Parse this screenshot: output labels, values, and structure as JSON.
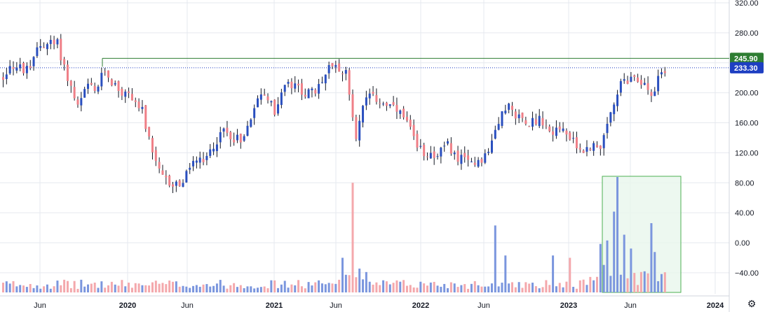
{
  "chart_data": {
    "type": "candlestick",
    "colors": {
      "up": "#2a4fbf",
      "down": "#ef7f87",
      "volume_up": "#7b96de",
      "volume_down": "#f4a8ac",
      "resistance": "#2e7d32",
      "current_line": "#1e3fc2",
      "highlight_fill": "#e8f6ec",
      "highlight_border": "#4caf50",
      "grid": "#e6e9ef"
    },
    "y_axis": {
      "ticks": [
        "320.00",
        "280.00",
        "245.90",
        "200.00",
        "160.00",
        "120.00",
        "80.00",
        "40.00",
        "0.00",
        "−40.00"
      ],
      "range": [
        -70,
        330
      ]
    },
    "x_axis": {
      "ticks": [
        {
          "label": "Jun",
          "bold": false
        },
        {
          "label": "2020",
          "bold": true
        },
        {
          "label": "Jun",
          "bold": false
        },
        {
          "label": "2021",
          "bold": true
        },
        {
          "label": "Jun",
          "bold": false
        },
        {
          "label": "2022",
          "bold": true
        },
        {
          "label": "Jun",
          "bold": false
        },
        {
          "label": "2023",
          "bold": true
        },
        {
          "label": "Jun",
          "bold": false
        },
        {
          "label": "2024",
          "bold": true
        }
      ]
    },
    "price_labels": {
      "resistance": {
        "value": 245.9,
        "text": "245.90"
      },
      "current": {
        "value": 233.3,
        "text": "233.30"
      }
    },
    "price_path": [
      [
        0,
        220
      ],
      [
        2,
        238
      ],
      [
        5,
        232
      ],
      [
        8,
        228
      ],
      [
        10,
        262
      ],
      [
        13,
        266
      ],
      [
        16,
        265
      ],
      [
        19,
        220
      ],
      [
        22,
        180
      ],
      [
        25,
        210
      ],
      [
        27,
        200
      ],
      [
        30,
        230
      ],
      [
        32,
        215
      ],
      [
        35,
        200
      ],
      [
        38,
        195
      ],
      [
        41,
        175
      ],
      [
        44,
        115
      ],
      [
        47,
        85
      ],
      [
        50,
        78
      ],
      [
        53,
        80
      ],
      [
        56,
        110
      ],
      [
        59,
        105
      ],
      [
        62,
        130
      ],
      [
        65,
        150
      ],
      [
        68,
        140
      ],
      [
        71,
        140
      ],
      [
        74,
        185
      ],
      [
        77,
        200
      ],
      [
        80,
        175
      ],
      [
        83,
        210
      ],
      [
        86,
        208
      ],
      [
        89,
        200
      ],
      [
        92,
        200
      ],
      [
        95,
        225
      ],
      [
        97,
        240
      ],
      [
        99,
        235
      ],
      [
        101,
        225
      ],
      [
        104,
        145
      ],
      [
        107,
        195
      ],
      [
        110,
        190
      ],
      [
        113,
        185
      ],
      [
        116,
        175
      ],
      [
        119,
        160
      ],
      [
        122,
        125
      ],
      [
        125,
        120
      ],
      [
        128,
        118
      ],
      [
        131,
        130
      ],
      [
        134,
        112
      ],
      [
        137,
        108
      ],
      [
        140,
        110
      ],
      [
        143,
        120
      ],
      [
        146,
        165
      ],
      [
        149,
        180
      ],
      [
        152,
        168
      ],
      [
        155,
        162
      ],
      [
        158,
        165
      ],
      [
        161,
        148
      ],
      [
        164,
        155
      ],
      [
        167,
        140
      ],
      [
        170,
        120
      ],
      [
        173,
        128
      ],
      [
        176,
        132
      ],
      [
        179,
        170
      ],
      [
        182,
        210
      ],
      [
        185,
        215
      ],
      [
        188,
        215
      ],
      [
        191,
        200
      ],
      [
        194,
        225
      ]
    ],
    "volume_spikes": [
      {
        "i": 103,
        "v": 0.95,
        "up": false
      },
      {
        "i": 100,
        "v": 0.3,
        "up": true
      },
      {
        "i": 145,
        "v": 0.58,
        "up": true
      },
      {
        "i": 148,
        "v": 0.32,
        "up": true
      },
      {
        "i": 162,
        "v": 0.32,
        "up": true
      },
      {
        "i": 167,
        "v": 0.3,
        "up": false
      },
      {
        "i": 176,
        "v": 0.42,
        "up": true
      },
      {
        "i": 178,
        "v": 0.45,
        "up": true
      },
      {
        "i": 180,
        "v": 0.7,
        "up": true
      },
      {
        "i": 181,
        "v": 1.0,
        "up": true
      },
      {
        "i": 183,
        "v": 0.5,
        "up": true
      },
      {
        "i": 185,
        "v": 0.38,
        "up": true
      },
      {
        "i": 191,
        "v": 0.6,
        "up": true
      },
      {
        "i": 192,
        "v": 0.35,
        "up": true
      }
    ]
  },
  "ui": {
    "settings_icon": "gear-icon"
  }
}
